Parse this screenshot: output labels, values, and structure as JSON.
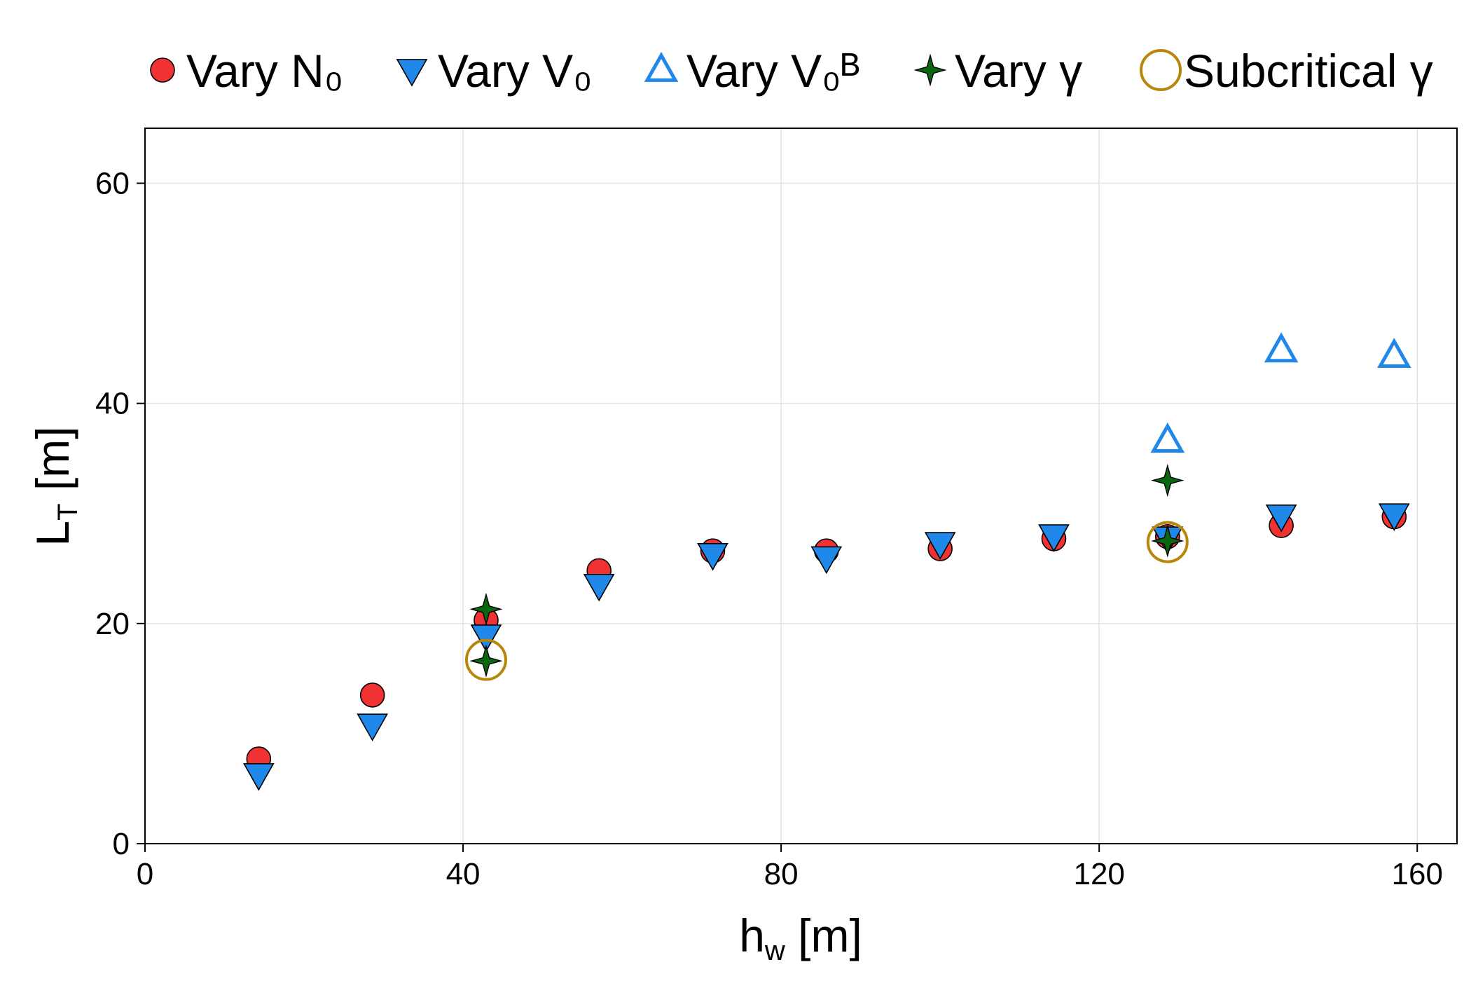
{
  "chart_data": {
    "type": "scatter",
    "title": "",
    "xlabel": {
      "main": "h",
      "sub": "w",
      "tail": " [m]"
    },
    "ylabel": {
      "main": "L",
      "sub": "T",
      "tail": " [m]"
    },
    "xlim": [
      0,
      165
    ],
    "ylim": [
      0,
      65
    ],
    "xticks": [
      0,
      40,
      80,
      120,
      160
    ],
    "yticks": [
      0,
      20,
      40,
      60
    ],
    "grid": true,
    "legend_position": "top",
    "series": [
      {
        "id": "n0",
        "name": "Vary N₀",
        "marker": "circle",
        "fill": "#f03232",
        "stroke": "#000000",
        "points": [
          [
            14.3,
            7.7
          ],
          [
            28.6,
            13.5
          ],
          [
            42.9,
            20.3
          ],
          [
            57.1,
            24.8
          ],
          [
            71.4,
            26.6
          ],
          [
            85.7,
            26.6
          ],
          [
            100.0,
            26.8
          ],
          [
            114.3,
            27.7
          ],
          [
            128.6,
            27.9
          ],
          [
            142.9,
            28.9
          ],
          [
            157.1,
            29.7
          ]
        ]
      },
      {
        "id": "v0",
        "name": "Vary V₀",
        "marker": "triangle-down",
        "fill": "#1f88e8",
        "stroke": "#000000",
        "points": [
          [
            14.3,
            6.3
          ],
          [
            28.6,
            10.8
          ],
          [
            42.9,
            18.9
          ],
          [
            57.1,
            23.5
          ],
          [
            71.4,
            26.3
          ],
          [
            85.7,
            26.0
          ],
          [
            100.0,
            27.3
          ],
          [
            114.3,
            28.0
          ],
          [
            128.6,
            27.8
          ],
          [
            142.9,
            29.8
          ],
          [
            157.1,
            29.9
          ]
        ]
      },
      {
        "id": "v0b",
        "name": "Vary V₀ᴮ",
        "marker": "triangle-up-open",
        "fill": "none",
        "stroke": "#1f88e8",
        "points": [
          [
            128.6,
            36.6
          ],
          [
            142.9,
            44.8
          ],
          [
            157.1,
            44.3
          ]
        ]
      },
      {
        "id": "gamma",
        "name": "Vary γ",
        "marker": "star4",
        "fill": "#0b6610",
        "stroke": "#000000",
        "points": [
          [
            42.9,
            21.3
          ],
          [
            42.9,
            16.6
          ],
          [
            128.6,
            33.0
          ],
          [
            128.6,
            27.5
          ]
        ]
      },
      {
        "id": "subcrit",
        "name": "Subcritical γ",
        "marker": "circle-open",
        "fill": "none",
        "stroke": "#b8860b",
        "points": [
          [
            42.9,
            16.7
          ],
          [
            128.6,
            27.4
          ]
        ]
      }
    ]
  }
}
